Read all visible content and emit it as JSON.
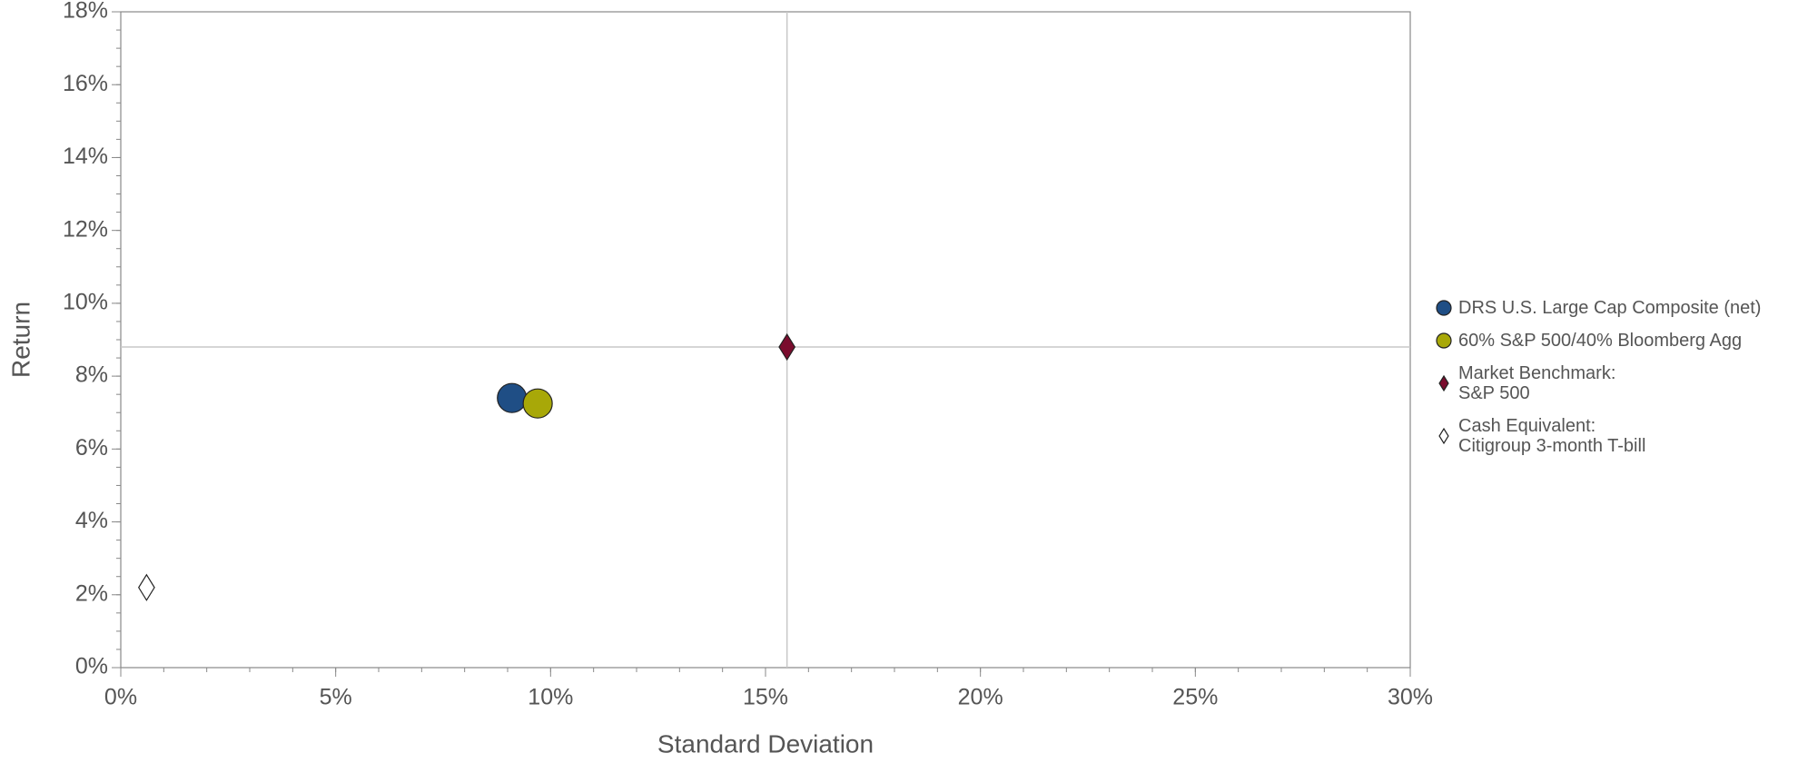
{
  "chart_data": {
    "type": "scatter",
    "xlabel": "Standard Deviation",
    "ylabel": "Return",
    "xlim": [
      0,
      30
    ],
    "ylim": [
      0,
      18
    ],
    "xticks": [
      {
        "value": 0,
        "label": "0%"
      },
      {
        "value": 5,
        "label": "5%"
      },
      {
        "value": 10,
        "label": "10%"
      },
      {
        "value": 15,
        "label": "15%"
      },
      {
        "value": 20,
        "label": "20%"
      },
      {
        "value": 25,
        "label": "25%"
      },
      {
        "value": 30,
        "label": "30%"
      }
    ],
    "yticks": [
      {
        "value": 0,
        "label": "0%"
      },
      {
        "value": 2,
        "label": "2%"
      },
      {
        "value": 4,
        "label": "4%"
      },
      {
        "value": 6,
        "label": "6%"
      },
      {
        "value": 8,
        "label": "8%"
      },
      {
        "value": 10,
        "label": "10%"
      },
      {
        "value": 12,
        "label": "12%"
      },
      {
        "value": 14,
        "label": "14%"
      },
      {
        "value": 16,
        "label": "16%"
      },
      {
        "value": 18,
        "label": "18%"
      }
    ],
    "vlines": [
      15.5
    ],
    "hlines": [
      8.8
    ],
    "legend": "right",
    "series": [
      {
        "name": "DRS U.S. Large Cap Composite (net)",
        "color": "#1f4e85",
        "marker": "circle",
        "x": [
          9.1
        ],
        "values": [
          7.4
        ]
      },
      {
        "name": "60% S&P 500/40% Bloomberg Agg",
        "color": "#a8a808",
        "marker": "circle",
        "x": [
          9.7
        ],
        "values": [
          7.25
        ]
      },
      {
        "name": "Market Benchmark:\nS&P 500",
        "color": "#7a0c2e",
        "marker": "diamond",
        "x": [
          15.5
        ],
        "values": [
          8.8
        ]
      },
      {
        "name": "Cash Equivalent:\nCitigroup 3-month T-bill",
        "color": "#ffffff",
        "marker": "diamond",
        "x": [
          0.6
        ],
        "values": [
          2.2
        ]
      }
    ]
  }
}
